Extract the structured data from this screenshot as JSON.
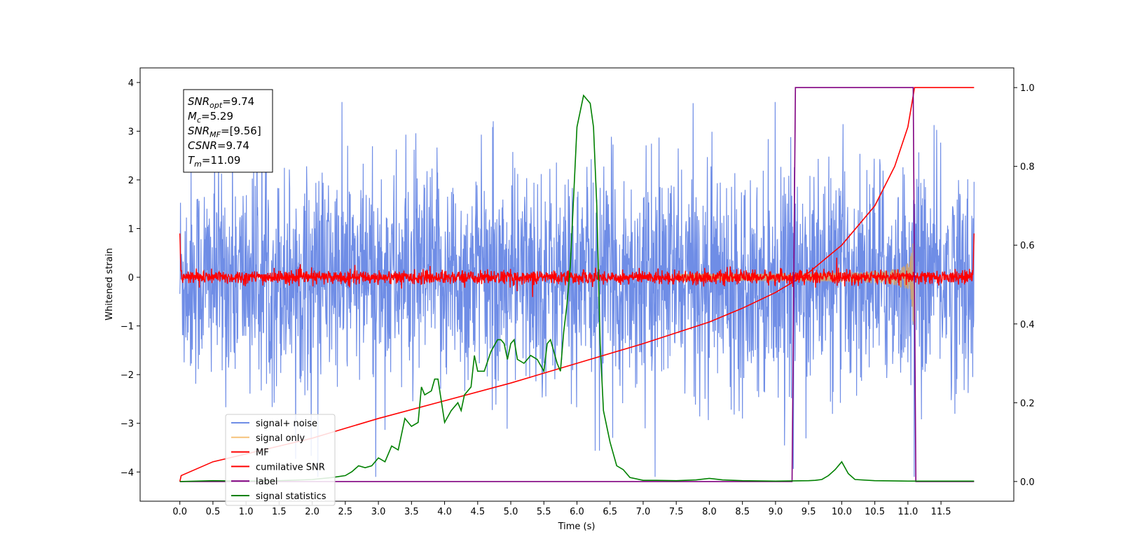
{
  "chart_data": {
    "type": "line",
    "xlabel": "Time (s)",
    "ylabel": "Whitened strain",
    "xlim": [
      -0.6,
      12.6
    ],
    "ylim_left": [
      -4.6,
      4.3
    ],
    "ylim_right": [
      -0.05,
      1.05
    ],
    "xticks": [
      "0.0",
      "0.5",
      "1.0",
      "1.5",
      "2.0",
      "2.5",
      "3.0",
      "3.5",
      "4.0",
      "4.5",
      "5.0",
      "5.5",
      "6.0",
      "6.5",
      "7.0",
      "7.5",
      "8.0",
      "8.5",
      "9.0",
      "9.5",
      "10.0",
      "10.5",
      "11.0",
      "11.5"
    ],
    "yticks_left": [
      "4",
      "3",
      "2",
      "1",
      "0",
      "−1",
      "−2",
      "−3",
      "−4"
    ],
    "yticks_right": [
      "1.0",
      "0.8",
      "0.6",
      "0.4",
      "0.2",
      "0.0"
    ],
    "colors": {
      "signal_noise": "#6f8de6",
      "signal_only": "#f5a623",
      "mf": "#ff0000",
      "cumulative_snr": "#ff0000",
      "label": "#800080",
      "signal_statistics": "#008000"
    },
    "legend": {
      "placement": "lower-left",
      "entries": [
        {
          "name": "signal+ noise",
          "color": "#6f8de6"
        },
        {
          "name": "signal only",
          "color": "#f5c27a"
        },
        {
          "name": "MF",
          "color": "#ff0000"
        },
        {
          "name": "cumilative SNR",
          "color": "#ff0000"
        },
        {
          "name": "label",
          "color": "#800080"
        },
        {
          "name": "signal statistics",
          "color": "#008000"
        }
      ]
    },
    "annotation": [
      {
        "main": "SNR",
        "sub": "opt",
        "rest": "=9.74"
      },
      {
        "main": "M",
        "sub": "c",
        "rest": "=5.29"
      },
      {
        "main": "SNR",
        "sub": "MF",
        "rest": "=[9.56]"
      },
      {
        "main": "CSNR",
        "sub": "",
        "rest": "=9.74"
      },
      {
        "main": "T",
        "sub": "m",
        "rest": "=11.09"
      }
    ],
    "series": [
      {
        "name": "cumilative SNR",
        "axis": "right",
        "x": [
          0.0,
          0.02,
          0.5,
          1.0,
          2.0,
          3.0,
          4.0,
          5.0,
          6.0,
          7.0,
          8.0,
          8.5,
          9.0,
          9.5,
          10.0,
          10.5,
          10.8,
          11.0,
          11.09,
          11.1,
          12.0
        ],
        "y": [
          0.0,
          0.015,
          0.05,
          0.07,
          0.11,
          0.16,
          0.205,
          0.25,
          0.3,
          0.35,
          0.405,
          0.44,
          0.48,
          0.53,
          0.6,
          0.7,
          0.8,
          0.9,
          0.99,
          1.0,
          1.0
        ]
      },
      {
        "name": "label",
        "axis": "right",
        "x": [
          0.0,
          9.25,
          9.3,
          11.08,
          11.12,
          12.0
        ],
        "y": [
          0.0,
          0.0,
          1.0,
          1.0,
          0.0,
          0.0
        ]
      },
      {
        "name": "signal statistics",
        "axis": "right",
        "x": [
          0.0,
          0.5,
          1.0,
          1.5,
          2.0,
          2.3,
          2.5,
          2.6,
          2.7,
          2.8,
          2.9,
          3.0,
          3.1,
          3.2,
          3.3,
          3.4,
          3.5,
          3.6,
          3.65,
          3.7,
          3.8,
          3.85,
          3.9,
          4.0,
          4.1,
          4.2,
          4.25,
          4.3,
          4.4,
          4.45,
          4.5,
          4.6,
          4.7,
          4.8,
          4.85,
          4.9,
          4.95,
          5.0,
          5.05,
          5.1,
          5.2,
          5.3,
          5.4,
          5.5,
          5.55,
          5.6,
          5.7,
          5.75,
          5.8,
          5.85,
          5.9,
          6.0,
          6.1,
          6.2,
          6.25,
          6.3,
          6.35,
          6.4,
          6.5,
          6.6,
          6.7,
          6.8,
          7.0,
          7.2,
          7.5,
          7.8,
          8.0,
          8.2,
          8.5,
          9.0,
          9.5,
          9.6,
          9.7,
          9.8,
          9.9,
          10.0,
          10.1,
          10.2,
          10.5,
          11.0,
          11.5,
          12.0
        ],
        "y": [
          0.0,
          0.002,
          0.001,
          0.002,
          0.005,
          0.01,
          0.015,
          0.025,
          0.04,
          0.035,
          0.04,
          0.06,
          0.05,
          0.09,
          0.08,
          0.16,
          0.14,
          0.15,
          0.24,
          0.22,
          0.23,
          0.26,
          0.26,
          0.15,
          0.18,
          0.2,
          0.18,
          0.22,
          0.24,
          0.32,
          0.28,
          0.28,
          0.33,
          0.36,
          0.36,
          0.35,
          0.31,
          0.35,
          0.36,
          0.31,
          0.3,
          0.32,
          0.31,
          0.28,
          0.35,
          0.36,
          0.3,
          0.28,
          0.38,
          0.45,
          0.55,
          0.9,
          0.98,
          0.96,
          0.9,
          0.7,
          0.35,
          0.18,
          0.1,
          0.04,
          0.03,
          0.01,
          0.003,
          0.003,
          0.002,
          0.004,
          0.008,
          0.004,
          0.002,
          0.001,
          0.002,
          0.003,
          0.005,
          0.015,
          0.03,
          0.05,
          0.02,
          0.005,
          0.002,
          0.001,
          0.001,
          0.001
        ]
      }
    ]
  }
}
